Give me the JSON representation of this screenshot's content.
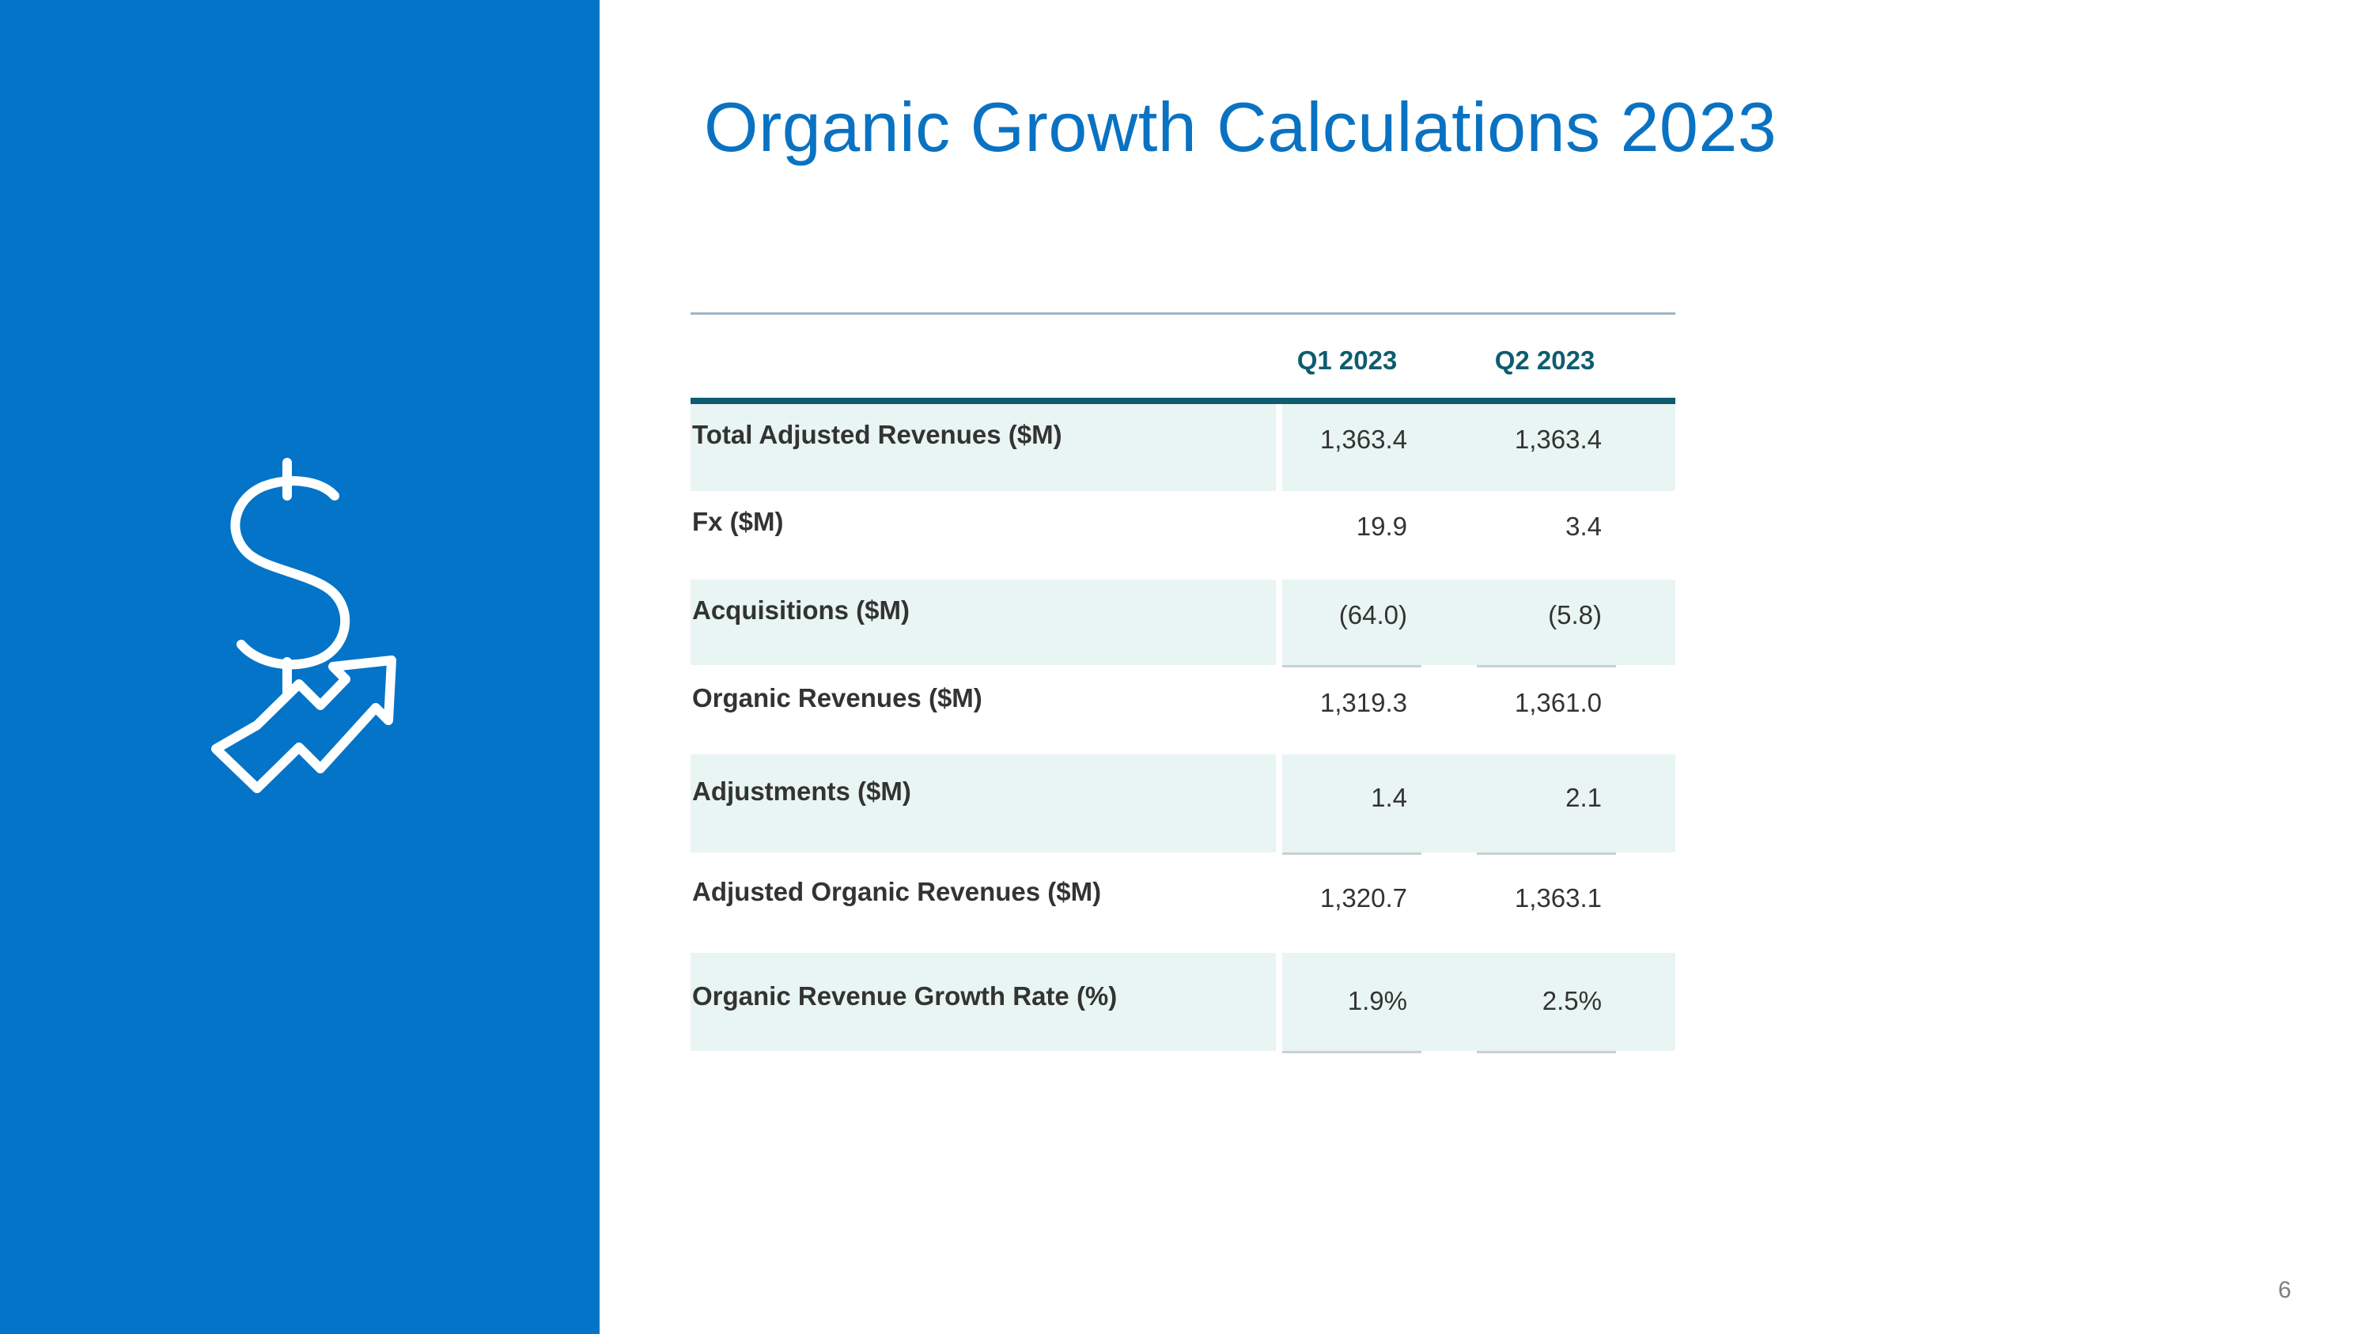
{
  "slide": {
    "title": "Organic Growth Calculations 2023",
    "page_number": "6"
  },
  "sidebar": {
    "icon": "dollar-growth-arrow-icon",
    "background_color": "#0474C8"
  },
  "table": {
    "columns": [
      "Q1 2023",
      "Q2 2023"
    ],
    "rows": [
      {
        "label": "Total Adjusted Revenues ($M)",
        "q1": "1,363.4",
        "q2": "1,363.4"
      },
      {
        "label": "Fx ($M)",
        "q1": "19.9",
        "q2": "3.4"
      },
      {
        "label": "Acquisitions ($M)",
        "q1": "(64.0)",
        "q2": "(5.8)"
      },
      {
        "label": "Organic Revenues ($M)",
        "q1": "1,319.3",
        "q2": "1,361.0"
      },
      {
        "label": "Adjustments ($M)",
        "q1": "1.4",
        "q2": "2.1"
      },
      {
        "label": "Adjusted Organic Revenues ($M)",
        "q1": "1,320.7",
        "q2": "1,363.1"
      },
      {
        "label": "Organic Revenue Growth Rate (%)",
        "q1": "1.9%",
        "q2": "2.5%"
      }
    ]
  }
}
